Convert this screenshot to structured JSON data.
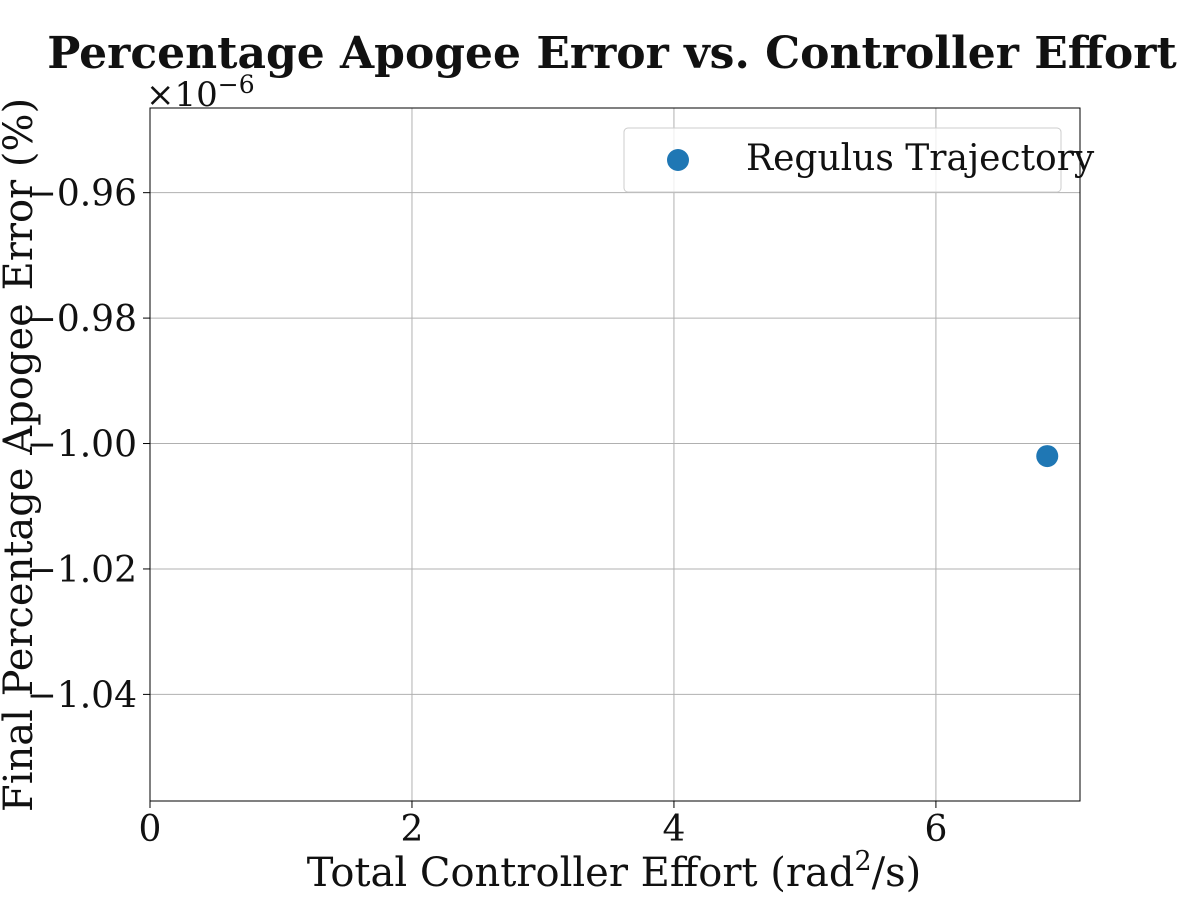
{
  "chart_data": {
    "type": "scatter",
    "title": "Percentage Apogee Error vs. Controller Effort",
    "xlabel_main": "Total Controller Effort (rad",
    "xlabel_sup": "2",
    "xlabel_tail": "/s)",
    "ylabel": "Final Percentage Apogee Error (%)",
    "y_offset_base": "×10",
    "y_offset_exp": "−6",
    "xlim": [
      0,
      7.1
    ],
    "ylim": [
      -1.057,
      -0.9465
    ],
    "x_ticks": [
      0,
      2,
      4,
      6
    ],
    "x_tick_labels": [
      "0",
      "2",
      "4",
      "6"
    ],
    "y_ticks": [
      -0.96,
      -0.98,
      -1.0,
      -1.02,
      -1.04
    ],
    "y_tick_labels": [
      "−0.96",
      "−0.98",
      "−1.00",
      "−1.02",
      "−1.04"
    ],
    "y_unit_scale": "1e-6",
    "grid": true,
    "legend_position": "top-right",
    "series": [
      {
        "name": "Regulus Trajectory",
        "color": "#1f77b4",
        "points": [
          {
            "x": 6.85,
            "y": -1.002
          }
        ]
      }
    ]
  }
}
